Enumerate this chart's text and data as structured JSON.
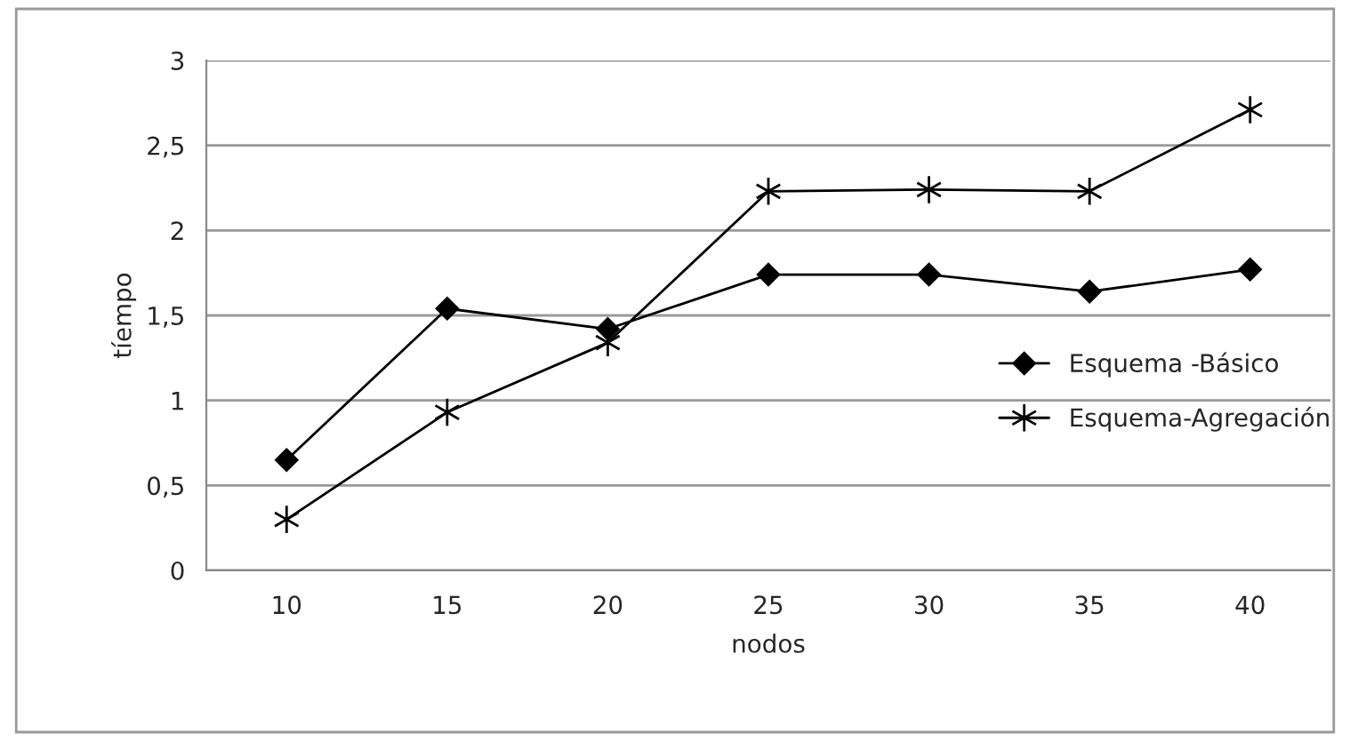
{
  "chart_data": {
    "type": "line",
    "xlabel": "nodos",
    "ylabel": "tíempo",
    "categories": [
      "10",
      "15",
      "20",
      "25",
      "30",
      "35",
      "40"
    ],
    "series": [
      {
        "name": "Esquema -Básico",
        "color": "#000000",
        "marker": "diamond",
        "values": [
          0.65,
          1.54,
          1.42,
          1.74,
          1.74,
          1.64,
          1.77
        ]
      },
      {
        "name": "Esquema-Agregación",
        "color": "#000000",
        "marker": "cross",
        "values": [
          0.3,
          0.93,
          1.34,
          2.23,
          2.24,
          2.23,
          2.71
        ]
      }
    ],
    "ylim": [
      0,
      3
    ],
    "yticks": [
      0,
      {
        "value": 0.5,
        "label": "0,5"
      },
      1,
      {
        "value": 1.5,
        "label": "1,5"
      },
      2,
      {
        "value": 2.5,
        "label": "2,5"
      },
      3
    ],
    "grid": "y",
    "legend": "right",
    "line_style": "solid"
  }
}
